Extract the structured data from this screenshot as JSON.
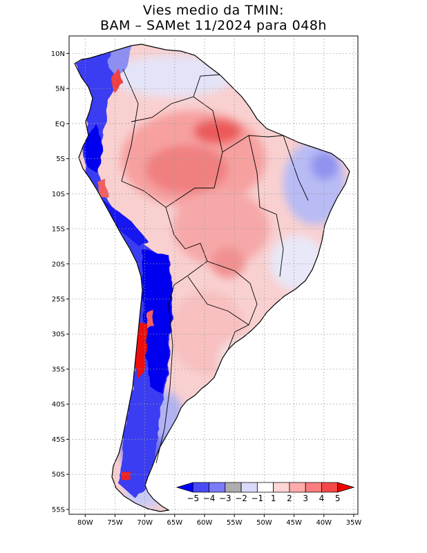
{
  "title": {
    "line1": "Vies medio da TMIN:",
    "line2": "BAM – SAMet 11/2024  para 048h"
  },
  "map": {
    "lat_ticks": [
      {
        "value": 10,
        "label": "10N"
      },
      {
        "value": 5,
        "label": "5N"
      },
      {
        "value": 0,
        "label": "EQ"
      },
      {
        "value": -5,
        "label": "5S"
      },
      {
        "value": -10,
        "label": "10S"
      },
      {
        "value": -15,
        "label": "15S"
      },
      {
        "value": -20,
        "label": "20S"
      },
      {
        "value": -25,
        "label": "25S"
      },
      {
        "value": -30,
        "label": "30S"
      },
      {
        "value": -35,
        "label": "35S"
      },
      {
        "value": -40,
        "label": "40S"
      },
      {
        "value": -45,
        "label": "45S"
      },
      {
        "value": -50,
        "label": "50S"
      },
      {
        "value": -55,
        "label": "55S"
      }
    ],
    "lon_ticks": [
      {
        "value": -80,
        "label": "80W"
      },
      {
        "value": -75,
        "label": "75W"
      },
      {
        "value": -70,
        "label": "70W"
      },
      {
        "value": -65,
        "label": "65W"
      },
      {
        "value": -60,
        "label": "60W"
      },
      {
        "value": -55,
        "label": "55W"
      },
      {
        "value": -50,
        "label": "50W"
      },
      {
        "value": -45,
        "label": "45W"
      },
      {
        "value": -40,
        "label": "40W"
      },
      {
        "value": -35,
        "label": "35W"
      }
    ],
    "lon_range": [
      -82.7,
      -34.3
    ],
    "lat_range": [
      -55.7,
      12.5
    ]
  },
  "colorbar": {
    "labels": [
      "−5",
      "−4",
      "−3",
      "−2",
      "−1",
      "1",
      "2",
      "3",
      "4",
      "5"
    ],
    "colors": [
      "#0000ff",
      "#4a4af5",
      "#7b7bfa",
      "#abababfa",
      "#d9d9fc",
      "#ffffff",
      "#ffd5d5",
      "#ffabab",
      "#fb7d7d",
      "#f44848",
      "#f00000"
    ]
  },
  "colors": {
    "cold_strong": "#0000ee",
    "cold_mid": "#6f72f5",
    "cold_light": "#d9daf7",
    "warm_light": "#fcd3d3",
    "warm_mid": "#f7a3a3",
    "warm_strong": "#f26a6a",
    "hot": "#ee1010"
  }
}
